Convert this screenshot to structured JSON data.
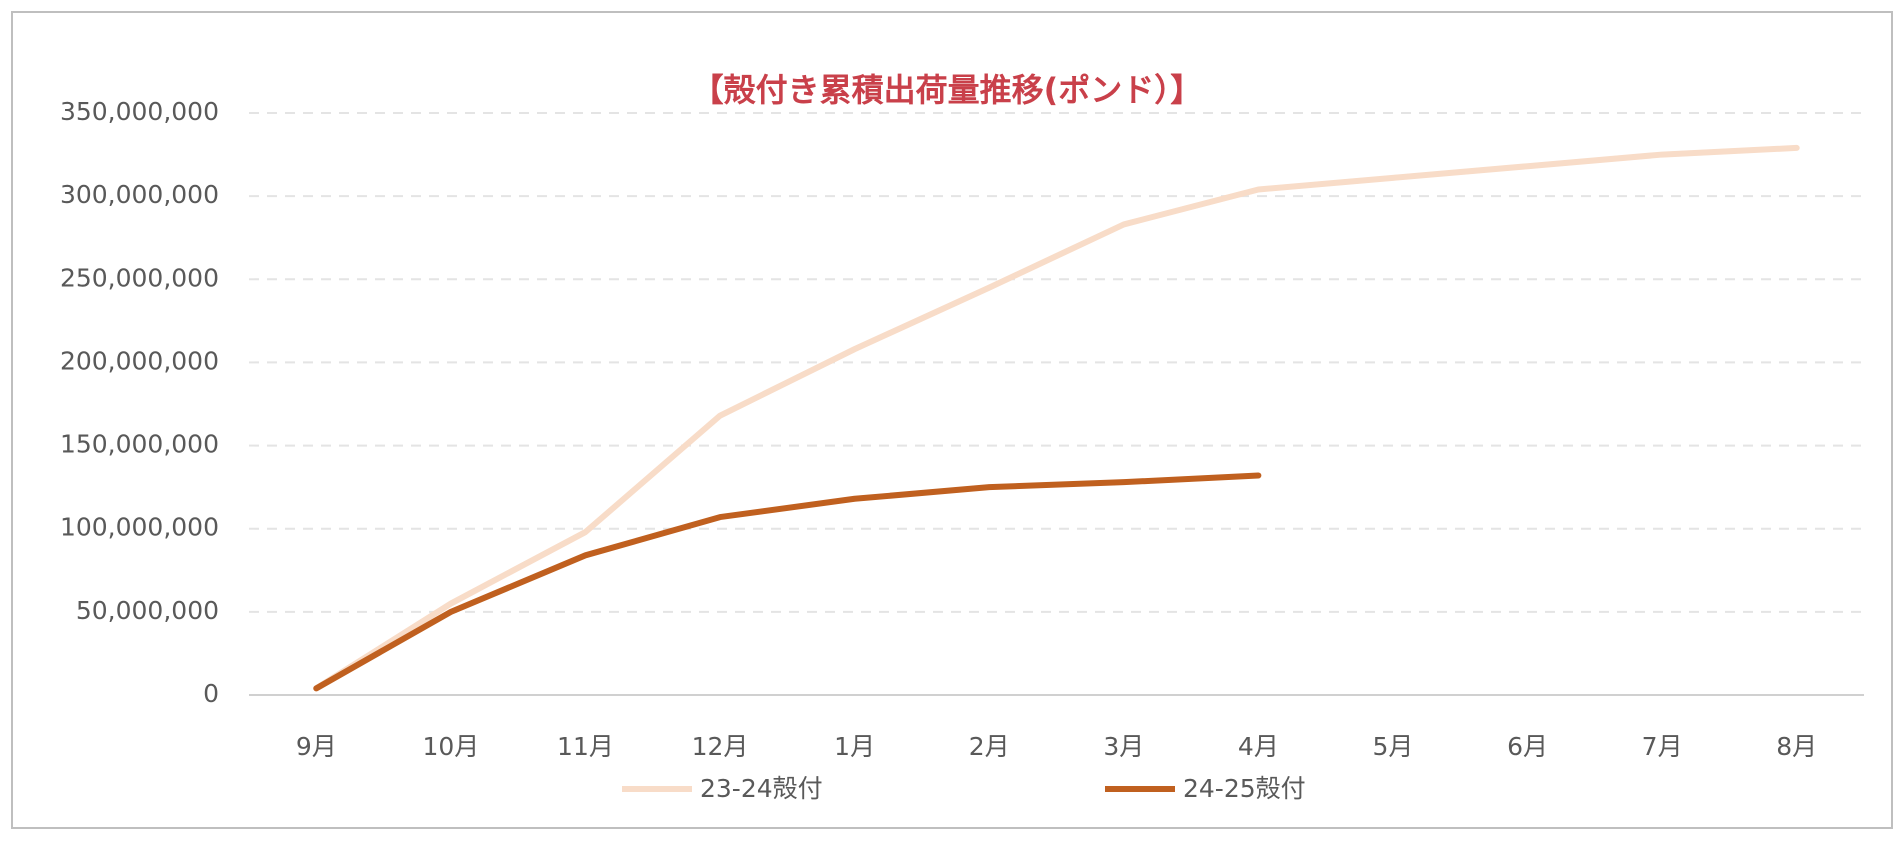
{
  "chart_data": {
    "type": "line",
    "title": "【殻付き累積出荷量推移(ポンド）】",
    "categories": [
      "9月",
      "10月",
      "11月",
      "12月",
      "1月",
      "2月",
      "3月",
      "4月",
      "5月",
      "6月",
      "7月",
      "8月"
    ],
    "series": [
      {
        "name": "23-24殻付",
        "color": "#f8dcc8",
        "values": [
          4000000,
          55000000,
          98000000,
          168000000,
          208000000,
          245000000,
          283000000,
          304000000,
          311000000,
          318000000,
          325000000,
          329000000
        ]
      },
      {
        "name": "24-25殻付",
        "color": "#c0601f",
        "values": [
          4000000,
          50000000,
          84000000,
          107000000,
          118000000,
          125000000,
          128000000,
          132000000,
          null,
          null,
          null,
          null
        ]
      }
    ],
    "ylim": [
      0,
      350000000
    ],
    "yticks": [
      0,
      {
        "value": 50000000,
        "label": "50,000,000"
      },
      {
        "value": 100000000,
        "label": "100,000,000"
      },
      {
        "value": 150000000,
        "label": "150,000,000"
      },
      {
        "value": 200000000,
        "label": "200,000,000"
      },
      {
        "value": 250000000,
        "label": "250,000,000"
      },
      {
        "value": 300000000,
        "label": "300,000,000"
      },
      {
        "value": 350000000,
        "label": "350,000,000"
      }
    ],
    "grid": true,
    "legend": "bottom"
  }
}
